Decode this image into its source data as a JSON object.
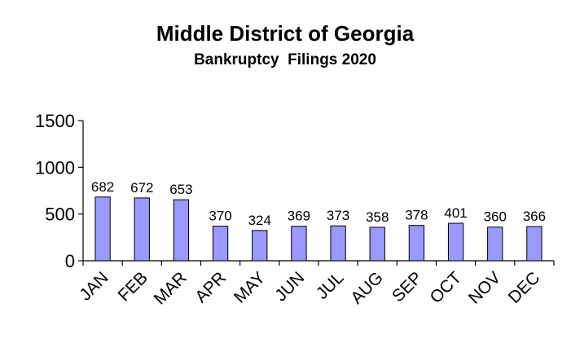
{
  "chart_data": {
    "type": "bar",
    "title": "Middle District of Georgia",
    "subtitle": "Bankruptcy  Filings 2020",
    "xlabel": "",
    "ylabel": "",
    "categories": [
      "JAN",
      "FEB",
      "MAR",
      "APR",
      "MAY",
      "JUN",
      "JUL",
      "AUG",
      "SEP",
      "OCT",
      "NOV",
      "DEC"
    ],
    "values": [
      682,
      672,
      653,
      370,
      324,
      369,
      373,
      358,
      378,
      401,
      360,
      366
    ],
    "data_labels": [
      "682",
      "672",
      "653",
      "370",
      "324",
      "369",
      "373",
      "358",
      "378",
      "401",
      "360",
      "366"
    ],
    "ylim": [
      0,
      1500
    ],
    "yticks": [
      "0",
      "500",
      "1000",
      "1500"
    ],
    "grid": false,
    "legend": "none",
    "bar_color": "#9999ff"
  }
}
